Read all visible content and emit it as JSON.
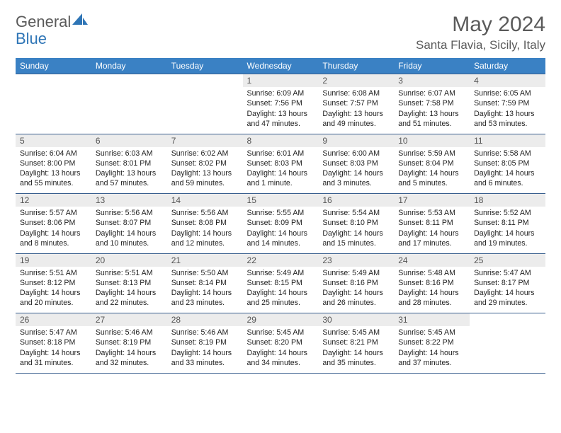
{
  "logo": {
    "text_general": "General",
    "text_blue": "Blue"
  },
  "title": "May 2024",
  "location": "Santa Flavia, Sicily, Italy",
  "colors": {
    "header_bg": "#3a81c4",
    "header_text": "#ffffff",
    "grid_border": "#395f8f",
    "daynum_bg": "#ececec",
    "page_bg": "#ffffff",
    "text": "#222222",
    "title_text": "#5a5a5a",
    "logo_gray": "#5a5a5a",
    "logo_blue": "#2e75b6"
  },
  "weekdays": [
    "Sunday",
    "Monday",
    "Tuesday",
    "Wednesday",
    "Thursday",
    "Friday",
    "Saturday"
  ],
  "weeks": [
    [
      null,
      null,
      null,
      {
        "day": "1",
        "sunrise": "Sunrise: 6:09 AM",
        "sunset": "Sunset: 7:56 PM",
        "daylight1": "Daylight: 13 hours",
        "daylight2": "and 47 minutes."
      },
      {
        "day": "2",
        "sunrise": "Sunrise: 6:08 AM",
        "sunset": "Sunset: 7:57 PM",
        "daylight1": "Daylight: 13 hours",
        "daylight2": "and 49 minutes."
      },
      {
        "day": "3",
        "sunrise": "Sunrise: 6:07 AM",
        "sunset": "Sunset: 7:58 PM",
        "daylight1": "Daylight: 13 hours",
        "daylight2": "and 51 minutes."
      },
      {
        "day": "4",
        "sunrise": "Sunrise: 6:05 AM",
        "sunset": "Sunset: 7:59 PM",
        "daylight1": "Daylight: 13 hours",
        "daylight2": "and 53 minutes."
      }
    ],
    [
      {
        "day": "5",
        "sunrise": "Sunrise: 6:04 AM",
        "sunset": "Sunset: 8:00 PM",
        "daylight1": "Daylight: 13 hours",
        "daylight2": "and 55 minutes."
      },
      {
        "day": "6",
        "sunrise": "Sunrise: 6:03 AM",
        "sunset": "Sunset: 8:01 PM",
        "daylight1": "Daylight: 13 hours",
        "daylight2": "and 57 minutes."
      },
      {
        "day": "7",
        "sunrise": "Sunrise: 6:02 AM",
        "sunset": "Sunset: 8:02 PM",
        "daylight1": "Daylight: 13 hours",
        "daylight2": "and 59 minutes."
      },
      {
        "day": "8",
        "sunrise": "Sunrise: 6:01 AM",
        "sunset": "Sunset: 8:03 PM",
        "daylight1": "Daylight: 14 hours",
        "daylight2": "and 1 minute."
      },
      {
        "day": "9",
        "sunrise": "Sunrise: 6:00 AM",
        "sunset": "Sunset: 8:03 PM",
        "daylight1": "Daylight: 14 hours",
        "daylight2": "and 3 minutes."
      },
      {
        "day": "10",
        "sunrise": "Sunrise: 5:59 AM",
        "sunset": "Sunset: 8:04 PM",
        "daylight1": "Daylight: 14 hours",
        "daylight2": "and 5 minutes."
      },
      {
        "day": "11",
        "sunrise": "Sunrise: 5:58 AM",
        "sunset": "Sunset: 8:05 PM",
        "daylight1": "Daylight: 14 hours",
        "daylight2": "and 6 minutes."
      }
    ],
    [
      {
        "day": "12",
        "sunrise": "Sunrise: 5:57 AM",
        "sunset": "Sunset: 8:06 PM",
        "daylight1": "Daylight: 14 hours",
        "daylight2": "and 8 minutes."
      },
      {
        "day": "13",
        "sunrise": "Sunrise: 5:56 AM",
        "sunset": "Sunset: 8:07 PM",
        "daylight1": "Daylight: 14 hours",
        "daylight2": "and 10 minutes."
      },
      {
        "day": "14",
        "sunrise": "Sunrise: 5:56 AM",
        "sunset": "Sunset: 8:08 PM",
        "daylight1": "Daylight: 14 hours",
        "daylight2": "and 12 minutes."
      },
      {
        "day": "15",
        "sunrise": "Sunrise: 5:55 AM",
        "sunset": "Sunset: 8:09 PM",
        "daylight1": "Daylight: 14 hours",
        "daylight2": "and 14 minutes."
      },
      {
        "day": "16",
        "sunrise": "Sunrise: 5:54 AM",
        "sunset": "Sunset: 8:10 PM",
        "daylight1": "Daylight: 14 hours",
        "daylight2": "and 15 minutes."
      },
      {
        "day": "17",
        "sunrise": "Sunrise: 5:53 AM",
        "sunset": "Sunset: 8:11 PM",
        "daylight1": "Daylight: 14 hours",
        "daylight2": "and 17 minutes."
      },
      {
        "day": "18",
        "sunrise": "Sunrise: 5:52 AM",
        "sunset": "Sunset: 8:11 PM",
        "daylight1": "Daylight: 14 hours",
        "daylight2": "and 19 minutes."
      }
    ],
    [
      {
        "day": "19",
        "sunrise": "Sunrise: 5:51 AM",
        "sunset": "Sunset: 8:12 PM",
        "daylight1": "Daylight: 14 hours",
        "daylight2": "and 20 minutes."
      },
      {
        "day": "20",
        "sunrise": "Sunrise: 5:51 AM",
        "sunset": "Sunset: 8:13 PM",
        "daylight1": "Daylight: 14 hours",
        "daylight2": "and 22 minutes."
      },
      {
        "day": "21",
        "sunrise": "Sunrise: 5:50 AM",
        "sunset": "Sunset: 8:14 PM",
        "daylight1": "Daylight: 14 hours",
        "daylight2": "and 23 minutes."
      },
      {
        "day": "22",
        "sunrise": "Sunrise: 5:49 AM",
        "sunset": "Sunset: 8:15 PM",
        "daylight1": "Daylight: 14 hours",
        "daylight2": "and 25 minutes."
      },
      {
        "day": "23",
        "sunrise": "Sunrise: 5:49 AM",
        "sunset": "Sunset: 8:16 PM",
        "daylight1": "Daylight: 14 hours",
        "daylight2": "and 26 minutes."
      },
      {
        "day": "24",
        "sunrise": "Sunrise: 5:48 AM",
        "sunset": "Sunset: 8:16 PM",
        "daylight1": "Daylight: 14 hours",
        "daylight2": "and 28 minutes."
      },
      {
        "day": "25",
        "sunrise": "Sunrise: 5:47 AM",
        "sunset": "Sunset: 8:17 PM",
        "daylight1": "Daylight: 14 hours",
        "daylight2": "and 29 minutes."
      }
    ],
    [
      {
        "day": "26",
        "sunrise": "Sunrise: 5:47 AM",
        "sunset": "Sunset: 8:18 PM",
        "daylight1": "Daylight: 14 hours",
        "daylight2": "and 31 minutes."
      },
      {
        "day": "27",
        "sunrise": "Sunrise: 5:46 AM",
        "sunset": "Sunset: 8:19 PM",
        "daylight1": "Daylight: 14 hours",
        "daylight2": "and 32 minutes."
      },
      {
        "day": "28",
        "sunrise": "Sunrise: 5:46 AM",
        "sunset": "Sunset: 8:19 PM",
        "daylight1": "Daylight: 14 hours",
        "daylight2": "and 33 minutes."
      },
      {
        "day": "29",
        "sunrise": "Sunrise: 5:45 AM",
        "sunset": "Sunset: 8:20 PM",
        "daylight1": "Daylight: 14 hours",
        "daylight2": "and 34 minutes."
      },
      {
        "day": "30",
        "sunrise": "Sunrise: 5:45 AM",
        "sunset": "Sunset: 8:21 PM",
        "daylight1": "Daylight: 14 hours",
        "daylight2": "and 35 minutes."
      },
      {
        "day": "31",
        "sunrise": "Sunrise: 5:45 AM",
        "sunset": "Sunset: 8:22 PM",
        "daylight1": "Daylight: 14 hours",
        "daylight2": "and 37 minutes."
      },
      null
    ]
  ]
}
